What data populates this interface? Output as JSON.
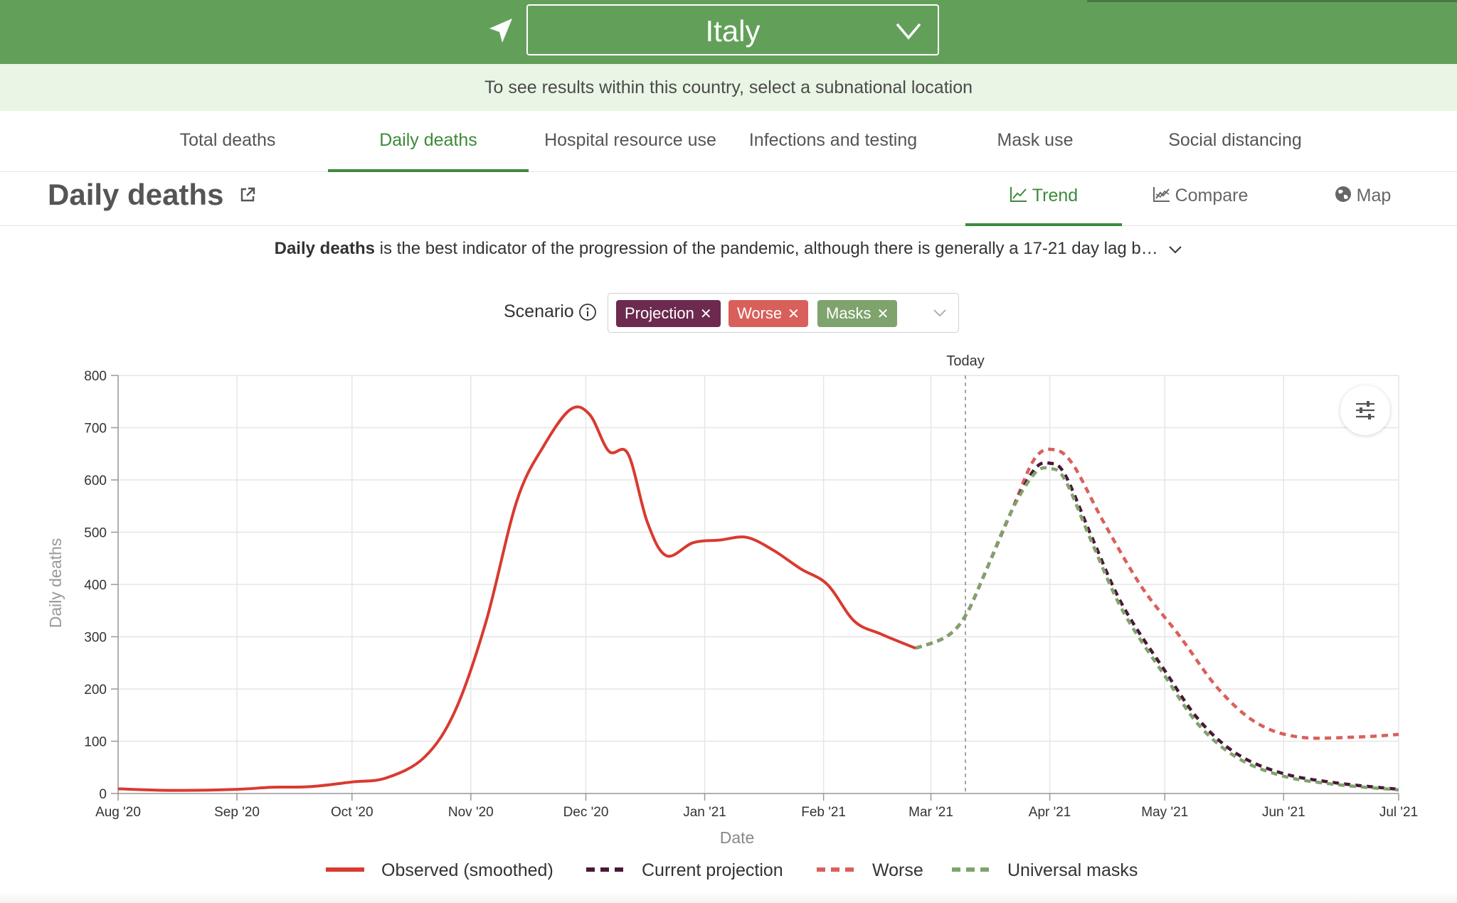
{
  "header": {
    "location_icon": "location-arrow-icon",
    "country": "Italy",
    "subnational_hint": "To see results within this country, select a subnational location"
  },
  "tabs": [
    {
      "label": "Total deaths",
      "active": false
    },
    {
      "label": "Daily deaths",
      "active": true
    },
    {
      "label": "Hospital resource use",
      "active": false
    },
    {
      "label": "Infections and testing",
      "active": false
    },
    {
      "label": "Mask use",
      "active": false
    },
    {
      "label": "Social distancing",
      "active": false
    }
  ],
  "section": {
    "title": "Daily deaths",
    "views": [
      {
        "label": "Trend",
        "icon": "line-chart-icon",
        "active": true
      },
      {
        "label": "Compare",
        "icon": "compare-chart-icon",
        "active": false
      },
      {
        "label": "Map",
        "icon": "globe-icon",
        "active": false
      }
    ],
    "description_bold": "Daily deaths",
    "description_rest": " is the best indicator of the progression of the pandemic, although there is generally a 17-21 day lag b…"
  },
  "scenario": {
    "label": "Scenario",
    "chips": [
      {
        "label": "Projection",
        "color": "#6b2a4e"
      },
      {
        "label": "Worse",
        "color": "#d9605a"
      },
      {
        "label": "Masks",
        "color": "#7fa36c"
      }
    ]
  },
  "colors": {
    "brand_green": "#62a05a",
    "observed": "#d93a2f",
    "projection": "#4a1838",
    "worse": "#d9605a",
    "masks": "#7fa36c"
  },
  "chart_data": {
    "type": "line",
    "xlabel": "Date",
    "ylabel": "Daily deaths",
    "ylim": [
      0,
      800
    ],
    "yticks": [
      0,
      100,
      200,
      300,
      400,
      500,
      600,
      700,
      800
    ],
    "xlim": [
      "2020-08-01",
      "2021-07-01"
    ],
    "xticks": [
      {
        "date": "2020-08-01",
        "label": "Aug '20"
      },
      {
        "date": "2020-09-01",
        "label": "Sep '20"
      },
      {
        "date": "2020-10-01",
        "label": "Oct '20"
      },
      {
        "date": "2020-11-01",
        "label": "Nov '20"
      },
      {
        "date": "2020-12-01",
        "label": "Dec '20"
      },
      {
        "date": "2021-01-01",
        "label": "Jan '21"
      },
      {
        "date": "2021-02-01",
        "label": "Feb '21"
      },
      {
        "date": "2021-03-01",
        "label": "Mar '21"
      },
      {
        "date": "2021-04-01",
        "label": "Apr '21"
      },
      {
        "date": "2021-05-01",
        "label": "May '21"
      },
      {
        "date": "2021-06-01",
        "label": "Jun '21"
      },
      {
        "date": "2021-07-01",
        "label": "Jul '21"
      }
    ],
    "today": {
      "date": "2021-03-10",
      "label": "Today"
    },
    "grid": true,
    "legend_position": "bottom",
    "series": [
      {
        "name": "Observed (smoothed)",
        "style": "solid",
        "color": "#d93a2f",
        "points": [
          [
            "2020-08-01",
            9
          ],
          [
            "2020-08-15",
            6
          ],
          [
            "2020-09-01",
            8
          ],
          [
            "2020-09-10",
            12
          ],
          [
            "2020-09-20",
            13
          ],
          [
            "2020-10-01",
            22
          ],
          [
            "2020-10-10",
            30
          ],
          [
            "2020-10-20",
            70
          ],
          [
            "2020-10-28",
            160
          ],
          [
            "2020-11-05",
            330
          ],
          [
            "2020-11-13",
            560
          ],
          [
            "2020-11-20",
            665
          ],
          [
            "2020-11-27",
            735
          ],
          [
            "2020-12-02",
            725
          ],
          [
            "2020-12-07",
            655
          ],
          [
            "2020-12-12",
            650
          ],
          [
            "2020-12-17",
            520
          ],
          [
            "2020-12-22",
            455
          ],
          [
            "2020-12-29",
            480
          ],
          [
            "2021-01-05",
            485
          ],
          [
            "2021-01-12",
            490
          ],
          [
            "2021-01-19",
            465
          ],
          [
            "2021-01-26",
            430
          ],
          [
            "2021-02-02",
            400
          ],
          [
            "2021-02-09",
            330
          ],
          [
            "2021-02-16",
            305
          ],
          [
            "2021-02-25",
            278
          ]
        ]
      },
      {
        "name": "Current projection",
        "style": "dashed",
        "color": "#4a1838",
        "points": [
          [
            "2021-02-25",
            278
          ],
          [
            "2021-03-05",
            300
          ],
          [
            "2021-03-10",
            340
          ],
          [
            "2021-03-15",
            420
          ],
          [
            "2021-03-22",
            540
          ],
          [
            "2021-03-28",
            620
          ],
          [
            "2021-04-01",
            632
          ],
          [
            "2021-04-05",
            610
          ],
          [
            "2021-04-12",
            490
          ],
          [
            "2021-04-20",
            360
          ],
          [
            "2021-05-01",
            235
          ],
          [
            "2021-05-10",
            140
          ],
          [
            "2021-05-20",
            75
          ],
          [
            "2021-06-01",
            38
          ],
          [
            "2021-06-15",
            20
          ],
          [
            "2021-07-01",
            8
          ]
        ]
      },
      {
        "name": "Worse",
        "style": "dashed",
        "color": "#d9605a",
        "points": [
          [
            "2021-02-25",
            278
          ],
          [
            "2021-03-05",
            300
          ],
          [
            "2021-03-10",
            340
          ],
          [
            "2021-03-15",
            420
          ],
          [
            "2021-03-22",
            540
          ],
          [
            "2021-03-28",
            640
          ],
          [
            "2021-04-02",
            658
          ],
          [
            "2021-04-07",
            630
          ],
          [
            "2021-04-15",
            520
          ],
          [
            "2021-04-25",
            395
          ],
          [
            "2021-05-05",
            300
          ],
          [
            "2021-05-15",
            200
          ],
          [
            "2021-05-25",
            135
          ],
          [
            "2021-06-05",
            108
          ],
          [
            "2021-06-20",
            108
          ],
          [
            "2021-07-01",
            113
          ]
        ]
      },
      {
        "name": "Universal masks",
        "style": "dashed",
        "color": "#7fa36c",
        "points": [
          [
            "2021-02-25",
            278
          ],
          [
            "2021-03-05",
            300
          ],
          [
            "2021-03-10",
            340
          ],
          [
            "2021-03-15",
            420
          ],
          [
            "2021-03-22",
            540
          ],
          [
            "2021-03-28",
            612
          ],
          [
            "2021-04-01",
            622
          ],
          [
            "2021-04-05",
            600
          ],
          [
            "2021-04-12",
            480
          ],
          [
            "2021-04-20",
            350
          ],
          [
            "2021-05-01",
            225
          ],
          [
            "2021-05-10",
            130
          ],
          [
            "2021-05-20",
            68
          ],
          [
            "2021-06-01",
            33
          ],
          [
            "2021-06-15",
            17
          ],
          [
            "2021-07-01",
            7
          ]
        ]
      }
    ]
  }
}
